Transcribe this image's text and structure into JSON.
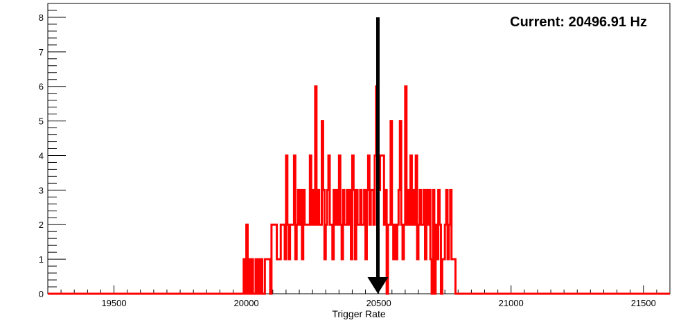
{
  "chart_data": {
    "type": "histogram",
    "xlabel": "Trigger Rate",
    "ylabel": "",
    "title": "",
    "xlim": [
      19250,
      21600
    ],
    "ylim": [
      0,
      8.4
    ],
    "x_major_ticks": [
      19500,
      20000,
      20500,
      21000,
      21500
    ],
    "x_tick_labels": [
      "19500",
      "20000",
      "20500",
      "21000",
      "21500"
    ],
    "y_major_ticks": [
      0,
      1,
      2,
      3,
      4,
      5,
      6,
      7,
      8
    ],
    "y_tick_labels": [
      "0",
      "1",
      "2",
      "3",
      "4",
      "5",
      "6",
      "7",
      "8"
    ],
    "grid": false,
    "series": [
      {
        "color": "#ff0000",
        "x": [
          19990,
          19995,
          20000,
          20005,
          20010,
          20015,
          20020,
          20025,
          20030,
          20035,
          20040,
          20045,
          20050,
          20055,
          20060,
          20065,
          20070,
          20075,
          20080,
          20085,
          20090,
          20095,
          20100,
          20105,
          20110,
          20115,
          20120,
          20125,
          20130,
          20135,
          20140,
          20145,
          20150,
          20155,
          20160,
          20165,
          20170,
          20175,
          20180,
          20185,
          20190,
          20195,
          20200,
          20205,
          20210,
          20215,
          20220,
          20225,
          20230,
          20235,
          20240,
          20245,
          20250,
          20255,
          20260,
          20265,
          20270,
          20275,
          20280,
          20285,
          20290,
          20295,
          20300,
          20305,
          20310,
          20315,
          20320,
          20325,
          20330,
          20335,
          20340,
          20345,
          20350,
          20355,
          20360,
          20365,
          20370,
          20375,
          20380,
          20385,
          20390,
          20395,
          20400,
          20405,
          20410,
          20415,
          20420,
          20425,
          20430,
          20435,
          20440,
          20445,
          20450,
          20455,
          20460,
          20465,
          20470,
          20475,
          20480,
          20485,
          20490,
          20495,
          20500,
          20505,
          20510,
          20515,
          20520,
          20525,
          20530,
          20535,
          20540,
          20545,
          20550,
          20555,
          20560,
          20565,
          20570,
          20575,
          20580,
          20585,
          20590,
          20595,
          20600,
          20605,
          20610,
          20615,
          20620,
          20625,
          20630,
          20635,
          20640,
          20645,
          20650,
          20655,
          20660,
          20665,
          20670,
          20675,
          20680,
          20685,
          20690,
          20695,
          20700,
          20705,
          20710,
          20715,
          20720,
          20725,
          20730,
          20735,
          20740,
          20745,
          20750,
          20755,
          20760,
          20765,
          20770,
          20775,
          20780,
          20785
        ],
        "values": [
          1,
          0,
          2,
          0,
          1,
          0,
          1,
          0,
          0,
          1,
          0,
          1,
          0,
          1,
          0,
          0,
          1,
          1,
          1,
          1,
          0,
          2,
          2,
          2,
          2,
          1,
          1,
          1,
          2,
          2,
          2,
          1,
          4,
          2,
          1,
          2,
          2,
          2,
          4,
          1,
          2,
          3,
          2,
          3,
          1,
          3,
          2,
          2,
          2,
          2,
          4,
          2,
          3,
          2,
          6,
          2,
          3,
          2,
          2,
          5,
          3,
          1,
          2,
          3,
          4,
          2,
          2,
          1,
          3,
          2,
          3,
          2,
          4,
          2,
          1,
          3,
          2,
          2,
          3,
          2,
          3,
          1,
          4,
          3,
          1,
          3,
          2,
          2,
          3,
          2,
          2,
          3,
          1,
          3,
          4,
          2,
          3,
          3,
          2,
          4,
          6,
          4,
          3,
          4,
          4,
          4,
          2,
          3,
          0,
          2,
          2,
          5,
          2,
          1,
          2,
          1,
          2,
          3,
          5,
          2,
          1,
          2,
          6,
          2,
          3,
          2,
          4,
          2,
          3,
          2,
          4,
          1,
          2,
          3,
          2,
          2,
          3,
          1,
          3,
          2,
          3,
          1,
          0,
          3,
          0,
          2,
          1,
          3,
          2,
          0,
          1,
          1,
          2,
          3,
          1,
          2,
          3,
          1,
          1,
          1
        ]
      }
    ],
    "annotations": [
      {
        "text": "Current: 20496.91 Hz",
        "placement": "top-right"
      }
    ],
    "marker": {
      "type": "arrow",
      "x": 20496.91,
      "y_from": 8,
      "y_to": 0,
      "color": "#000000"
    }
  }
}
